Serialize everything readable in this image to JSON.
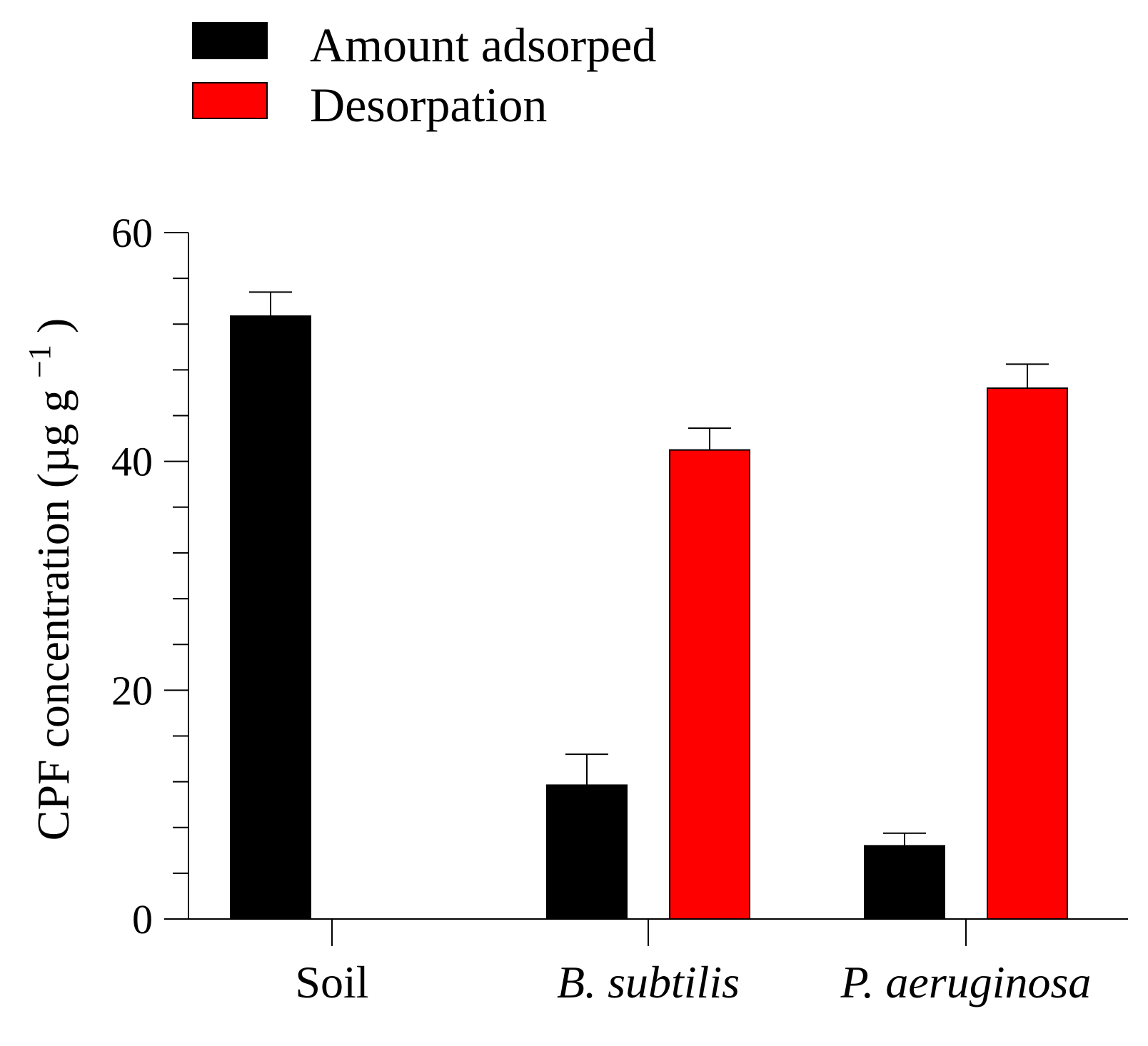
{
  "chart_data": {
    "type": "bar",
    "title": "",
    "xlabel": "",
    "ylabel": "CPF concentration (µg g",
    "ylabel_superscript": "−1",
    "ylabel_close": ")",
    "ylim": [
      0,
      60
    ],
    "yticks_major": [
      0,
      20,
      40,
      60
    ],
    "yticks_minor_step": 4,
    "categories": [
      "Soil",
      "B. subtilis",
      "P. aeruginosa"
    ],
    "categories_italic": [
      false,
      true,
      true
    ],
    "series": [
      {
        "name": "Amount adsorped",
        "color": "#000000",
        "values": [
          52.7,
          11.7,
          6.4
        ],
        "errors": [
          2.1,
          2.7,
          1.1
        ]
      },
      {
        "name": "Desorpation",
        "color": "#ff0000",
        "values": [
          null,
          41.0,
          46.4
        ],
        "errors": [
          null,
          1.9,
          2.1
        ]
      }
    ],
    "legend_position": "top-left",
    "grid": false
  }
}
